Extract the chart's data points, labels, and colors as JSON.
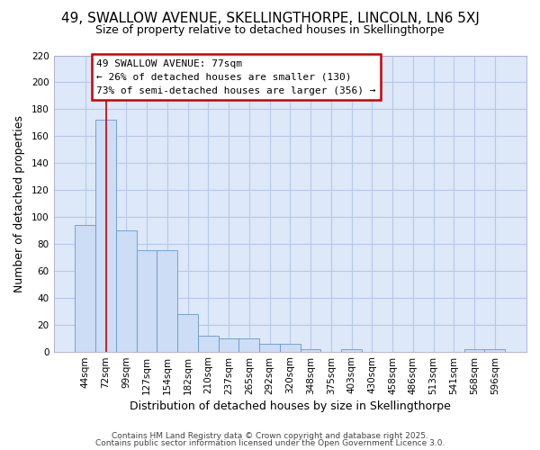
{
  "title1": "49, SWALLOW AVENUE, SKELLINGTHORPE, LINCOLN, LN6 5XJ",
  "title2": "Size of property relative to detached houses in Skellingthorpe",
  "xlabel": "Distribution of detached houses by size in Skellingthorpe",
  "ylabel": "Number of detached properties",
  "categories": [
    "44sqm",
    "72sqm",
    "99sqm",
    "127sqm",
    "154sqm",
    "182sqm",
    "210sqm",
    "237sqm",
    "265sqm",
    "292sqm",
    "320sqm",
    "348sqm",
    "375sqm",
    "403sqm",
    "430sqm",
    "458sqm",
    "486sqm",
    "513sqm",
    "541sqm",
    "568sqm",
    "596sqm"
  ],
  "values": [
    94,
    172,
    90,
    75,
    75,
    28,
    12,
    10,
    10,
    6,
    6,
    2,
    0,
    2,
    0,
    0,
    0,
    0,
    0,
    2,
    2
  ],
  "bar_color": "#ccddf5",
  "bar_edge_color": "#6699cc",
  "red_line_x": 1.0,
  "annotation_line1": "49 SWALLOW AVENUE: 77sqm",
  "annotation_line2": "← 26% of detached houses are smaller (130)",
  "annotation_line3": "73% of semi-detached houses are larger (356) →",
  "annotation_box_color": "#ffffff",
  "annotation_box_edge_color": "#cc0000",
  "red_line_color": "#cc0000",
  "grid_color": "#b8c8e8",
  "background_color": "#dde8f8",
  "fig_background": "#ffffff",
  "footer1": "Contains HM Land Registry data © Crown copyright and database right 2025.",
  "footer2": "Contains public sector information licensed under the Open Government Licence 3.0.",
  "ylim": [
    0,
    220
  ],
  "yticks": [
    0,
    20,
    40,
    60,
    80,
    100,
    120,
    140,
    160,
    180,
    200,
    220
  ]
}
